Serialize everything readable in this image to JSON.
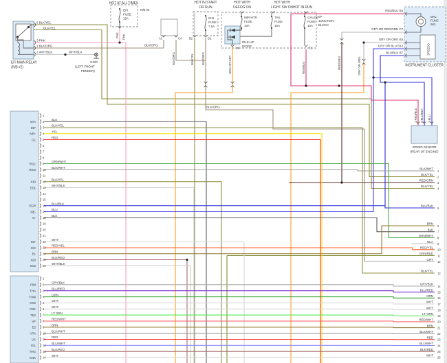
{
  "rails": {
    "all_times": "HOT AT ALL TIMES",
    "start_run": [
      "HOT IN START",
      "OR RUN"
    ],
    "defog": [
      "HOT WITH",
      "DEFOG ON"
    ],
    "light_sw": [
      "HOT WITH",
      "LIGHT SW ON"
    ],
    "in_run": "HOT IN RUN",
    "rb2": "R/B #2",
    "ip_junction": [
      "I/P",
      "JUNCTION",
      "BLOCK"
    ]
  },
  "fuses": {
    "efi": [
      "EFI",
      "FUSE",
      "15A"
    ],
    "ign": [
      "IGN",
      "FUSE",
      "7.5A"
    ],
    "mir": [
      "MIR-HTR",
      "FUSE",
      "10A"
    ],
    "tail": [
      "TAIL",
      "FUSE",
      "15A"
    ],
    "gauge": [
      "GAUGE",
      "FUSE",
      "10A"
    ]
  },
  "relay": {
    "name": [
      "EFI MAIN RELAY",
      "(R/B #2)"
    ],
    "pin5": "5 BLK/YEL",
    "pin5b": "BLK/YEL",
    "pin3": "3 PNK",
    "pin1": "1 BLK/ORG",
    "pin2": "2 WHT/BLK",
    "wht_blk_mid": "WHT/BLK",
    "ground": [
      "G100",
      "(LEFT FRONT",
      "FENDER)"
    ]
  },
  "connectors": {
    "a3": "A3",
    "c4": "C4",
    "b2": "B2",
    "d1": "D1",
    "h8": "H8",
    "e1": "E1"
  },
  "diode": {
    "name": [
      "IDLE-UP",
      "DIODE"
    ]
  },
  "cluster": {
    "name": "INSTRUMENT CLUSTER",
    "mal": [
      "MAL-",
      "FUNC",
      "IND"
    ],
    "speedo": "SPEEDO",
    "pins": [
      [
        "RED/BLU",
        "B4"
      ],
      [
        "GRY OR RED/GRN",
        "C7"
      ],
      [
        "GRY OR ORG",
        "B3"
      ],
      [
        "GRY OR BLU",
        "B13"
      ],
      [
        "BLU/BLK",
        "B7"
      ]
    ]
  },
  "sensor": {
    "name": [
      "SPEED SENSOR",
      "(REAR OF ENGINE)"
    ],
    "pins": [
      [
        "1",
        "RED/BLU"
      ],
      [
        "2",
        "BLU/BLK"
      ],
      [
        "3",
        "BLU"
      ]
    ]
  },
  "float_labels": {
    "pnk_a": "PNK",
    "pnk_b": "PNK",
    "blk_org_top": "BLK/ORG",
    "blk_org_c4": "BLK/ORG",
    "blk_yel_b2": "BLK/YEL",
    "blk_org_d1": "BLK/ORG",
    "blk_org_mid": "BLK/ORG",
    "org_gry": "ORG OR GRY",
    "red_blu": "RED/BLU",
    "red_grn": "RED/GRN",
    "gry_org": "GRY OR ORG"
  },
  "ecm_a": [
    [
      1,
      "",
      ""
    ],
    [
      2,
      "STA",
      "BLK"
    ],
    [
      3,
      "IGF",
      "BLK/YEL"
    ],
    [
      4,
      "NE+",
      "YEL"
    ],
    [
      5,
      "G1",
      "RED"
    ],
    [
      6,
      "",
      ""
    ],
    [
      7,
      "",
      ""
    ],
    [
      8,
      "",
      ""
    ],
    [
      9,
      "RSC",
      "GRN/WHT"
    ],
    [
      10,
      "RSO",
      "BLK/WHT"
    ],
    [
      11,
      "",
      ""
    ],
    [
      12,
      "#10",
      "BLK/YEL"
    ],
    [
      13,
      "E01",
      "WHT/BLK"
    ],
    [
      14,
      "",
      ""
    ],
    [
      15,
      "",
      ""
    ],
    [
      16,
      "EGR",
      "BLU/BLK"
    ],
    [
      17,
      "NE-",
      "BLU"
    ],
    [
      18,
      "G-",
      "BLK"
    ],
    [
      19,
      "",
      ""
    ],
    [
      20,
      "",
      ""
    ],
    [
      21,
      "",
      ""
    ],
    [
      22,
      "IGT",
      "WHT"
    ],
    [
      23,
      "ISC",
      "RED/YEL"
    ],
    [
      24,
      "E1",
      "BRN"
    ],
    [
      25,
      "#20",
      "BLK/RED"
    ],
    [
      26,
      "E02",
      "WHT/BLK"
    ]
  ],
  "ecm_b": [
    [
      1,
      "",
      ""
    ],
    [
      2,
      "PIM",
      "GRY/BLK"
    ],
    [
      3,
      "THA",
      "BLU/RED"
    ],
    [
      4,
      "THW",
      "GRN"
    ],
    [
      5,
      "OX2",
      "WHT"
    ],
    [
      6,
      "OX1",
      "WHT"
    ],
    [
      7,
      "TE2",
      "LT GRN"
    ],
    [
      8,
      "VF",
      "RED/WHT"
    ],
    [
      9,
      "E2",
      "BRN"
    ],
    [
      10,
      "VTA",
      "BLK/WHT"
    ],
    [
      11,
      "VC",
      "RED"
    ],
    [
      12,
      "IDL",
      "BLU/WHT"
    ],
    [
      13,
      "THG",
      "BLK/RED"
    ],
    [
      14,
      "KNK",
      "WHT"
    ]
  ],
  "right_pins": [
    [
      1,
      "BLK/WHT"
    ],
    [
      2,
      "BLK/YEL"
    ],
    [
      3,
      "RED/GRN"
    ],
    [
      4,
      "BLK/YEL"
    ],
    [
      5,
      "BLU/BLK"
    ],
    [
      6,
      "BRN"
    ],
    [
      7,
      "BLK"
    ],
    [
      8,
      "GRN/WHT"
    ],
    [
      9,
      "NCA"
    ],
    [
      10,
      "RED/YEL"
    ],
    [
      11,
      "GRN/RED"
    ],
    [
      12,
      "GRY"
    ],
    [
      13,
      "BLK/YEL"
    ],
    [
      14,
      "GRY/BLK"
    ],
    [
      15,
      "BLU/RED"
    ],
    [
      16,
      "GRN"
    ],
    [
      17,
      "WHT"
    ],
    [
      18,
      "WHT"
    ],
    [
      19,
      "LT GRN"
    ],
    [
      20,
      "RED/WHT"
    ],
    [
      21,
      "BRN"
    ],
    [
      22,
      "BLK/WHT"
    ],
    [
      23,
      "RED"
    ],
    [
      24,
      "BLU/WHT"
    ],
    [
      25,
      "BLK/RED"
    ],
    [
      26,
      "WHT"
    ]
  ],
  "colors": {
    "BLK": "#5a5a5a",
    "BLK/YEL": "#8e8e3c",
    "YEL": "#f2e400",
    "RED": "#ff2a2a",
    "PNK": "#ff9dbe",
    "BLK/ORG": "#9b8d79",
    "WHT/BLK": "#c9c9c9",
    "GRN/WHT": "#4aa64a",
    "BLK/WHT": "#9a9a9a",
    "BLU/BLK": "#2b2bd5",
    "BLU": "#4040e8",
    "WHT": "#d6d6d6",
    "RED/YEL": "#ff5c1f",
    "BRN": "#93742c",
    "BLK/RED": "#a86868",
    "GRY/BLK": "#a9a9a9",
    "BLU/RED": "#7a2fd0",
    "GRN": "#2ca02c",
    "LT GRN": "#57e857",
    "RED/WHT": "#ff6666",
    "BLU/WHT": "#8f8fff",
    "ORG": "#ff9d1f",
    "RED/BLU": "#e0356b",
    "RED/GRN": "#5a2a22",
    "GRY": "#b5b5b5",
    "GRN/RED": "#7d8c2e",
    "NCA": "#c4c4c4"
  }
}
